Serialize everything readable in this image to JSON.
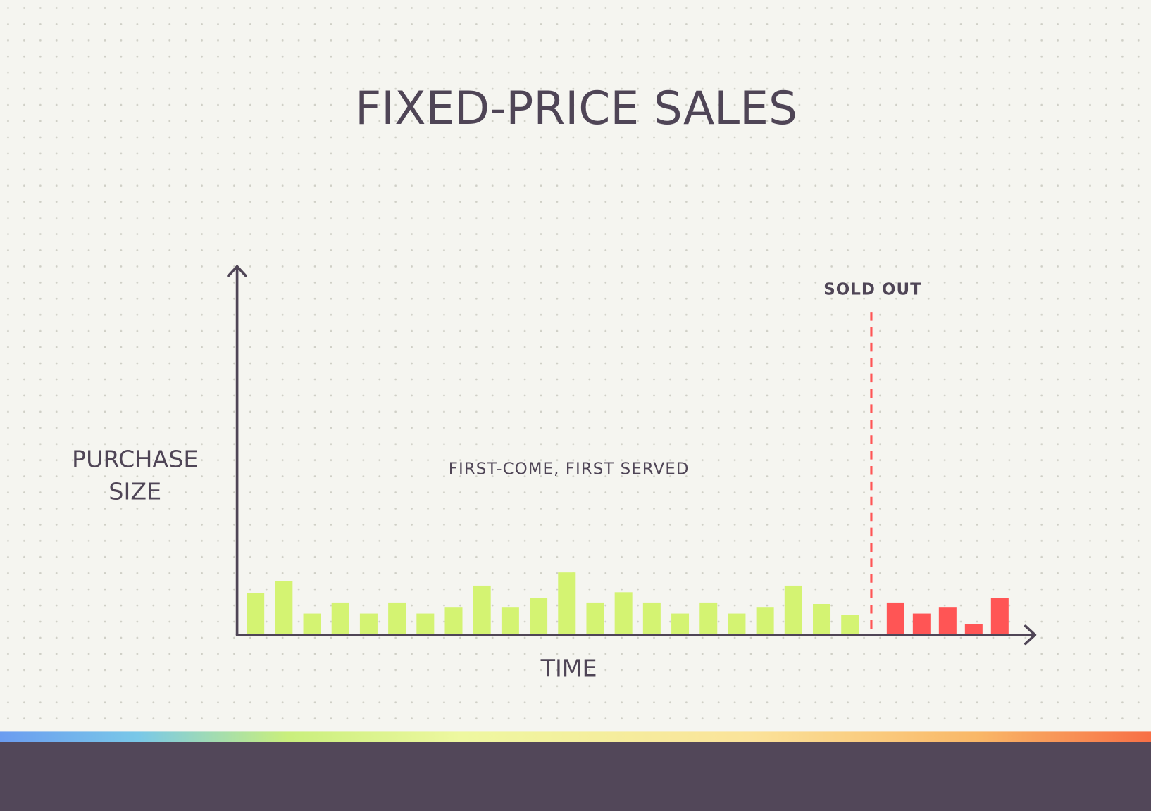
{
  "chart_data": {
    "type": "bar",
    "title": "FIXED-PRICE SALES",
    "y_label": "PURCHASE SIZE",
    "x_label": "TIME",
    "annotation": "FIRST-COME, FIRST SERVED",
    "marker_label": "SOLD OUT",
    "categories": [
      null,
      null,
      null,
      null,
      null,
      null,
      null,
      null,
      null,
      null,
      null,
      null,
      null,
      null,
      null,
      null,
      null,
      null,
      null,
      null,
      null,
      null,
      null,
      null,
      null,
      null,
      null
    ],
    "series": [
      {
        "color": "#d4f372",
        "values": [
          57,
          73,
          29,
          44,
          29,
          44,
          29,
          38,
          67,
          38,
          50,
          85,
          44,
          58,
          44,
          29,
          44,
          29,
          38,
          67,
          42,
          27,
          null,
          null,
          null,
          null,
          null
        ]
      },
      {
        "color": "#ff5555",
        "values": [
          null,
          null,
          null,
          null,
          null,
          null,
          null,
          null,
          null,
          null,
          null,
          null,
          null,
          null,
          null,
          null,
          null,
          null,
          null,
          null,
          null,
          null,
          44,
          29,
          38,
          15,
          50
        ]
      }
    ],
    "ylim": [
      0,
      500
    ]
  }
}
